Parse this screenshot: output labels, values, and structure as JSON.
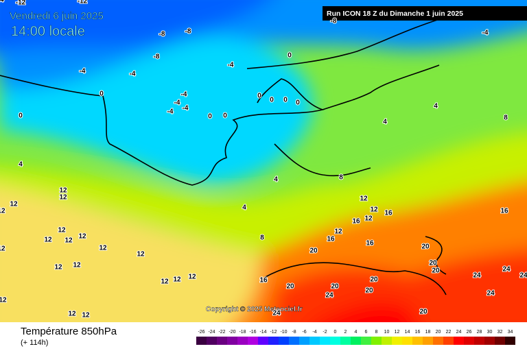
{
  "header": {
    "date": "Vendredi 6 juin 2025",
    "time": "14:00 locale",
    "run": "Run ICON 18 Z du Dimanche 1 juin 2025",
    "copyright": "Copyright © 2025 Meteociel.fr"
  },
  "footer": {
    "title": "Température 850hPa",
    "lead": "(+ 114h)"
  },
  "isotherm_labels": [
    -12,
    -12,
    -8,
    -8,
    -8,
    -8,
    -4,
    -4,
    -4,
    -4,
    -4,
    -4,
    -4,
    -4,
    0,
    0,
    0,
    0,
    0,
    0,
    0,
    0,
    0,
    4,
    4,
    4,
    4,
    4,
    8,
    8,
    8,
    12,
    12,
    12,
    12,
    12,
    12,
    12,
    12,
    12,
    12,
    12,
    12,
    12,
    12,
    12,
    12,
    12,
    12,
    12,
    12,
    12,
    12,
    12,
    16,
    16,
    16,
    16,
    16,
    16,
    20,
    20,
    20,
    20,
    20,
    20,
    20,
    20,
    20,
    24,
    24,
    24,
    24,
    24,
    24,
    24
  ],
  "legend": {
    "values": [
      -26,
      -24,
      -22,
      -20,
      -18,
      -16,
      -14,
      -12,
      -10,
      -8,
      -6,
      -4,
      -2,
      0,
      2,
      4,
      6,
      8,
      10,
      12,
      14,
      16,
      18,
      20,
      22,
      24,
      26,
      28,
      30,
      32,
      34
    ],
    "colors": [
      "#3a0040",
      "#500060",
      "#6a0080",
      "#8000a0",
      "#9a00c0",
      "#b000e0",
      "#6000ff",
      "#2020ff",
      "#0040ff",
      "#0070ff",
      "#00a0ff",
      "#00c8ff",
      "#00e8ff",
      "#00ffe0",
      "#00ffa0",
      "#00f060",
      "#40f040",
      "#80f000",
      "#c0f000",
      "#f0f000",
      "#ffe000",
      "#ffc000",
      "#ffa000",
      "#ff7000",
      "#ff4000",
      "#ff0000",
      "#e00000",
      "#c00000",
      "#a00000",
      "#700000",
      "#300000"
    ]
  }
}
